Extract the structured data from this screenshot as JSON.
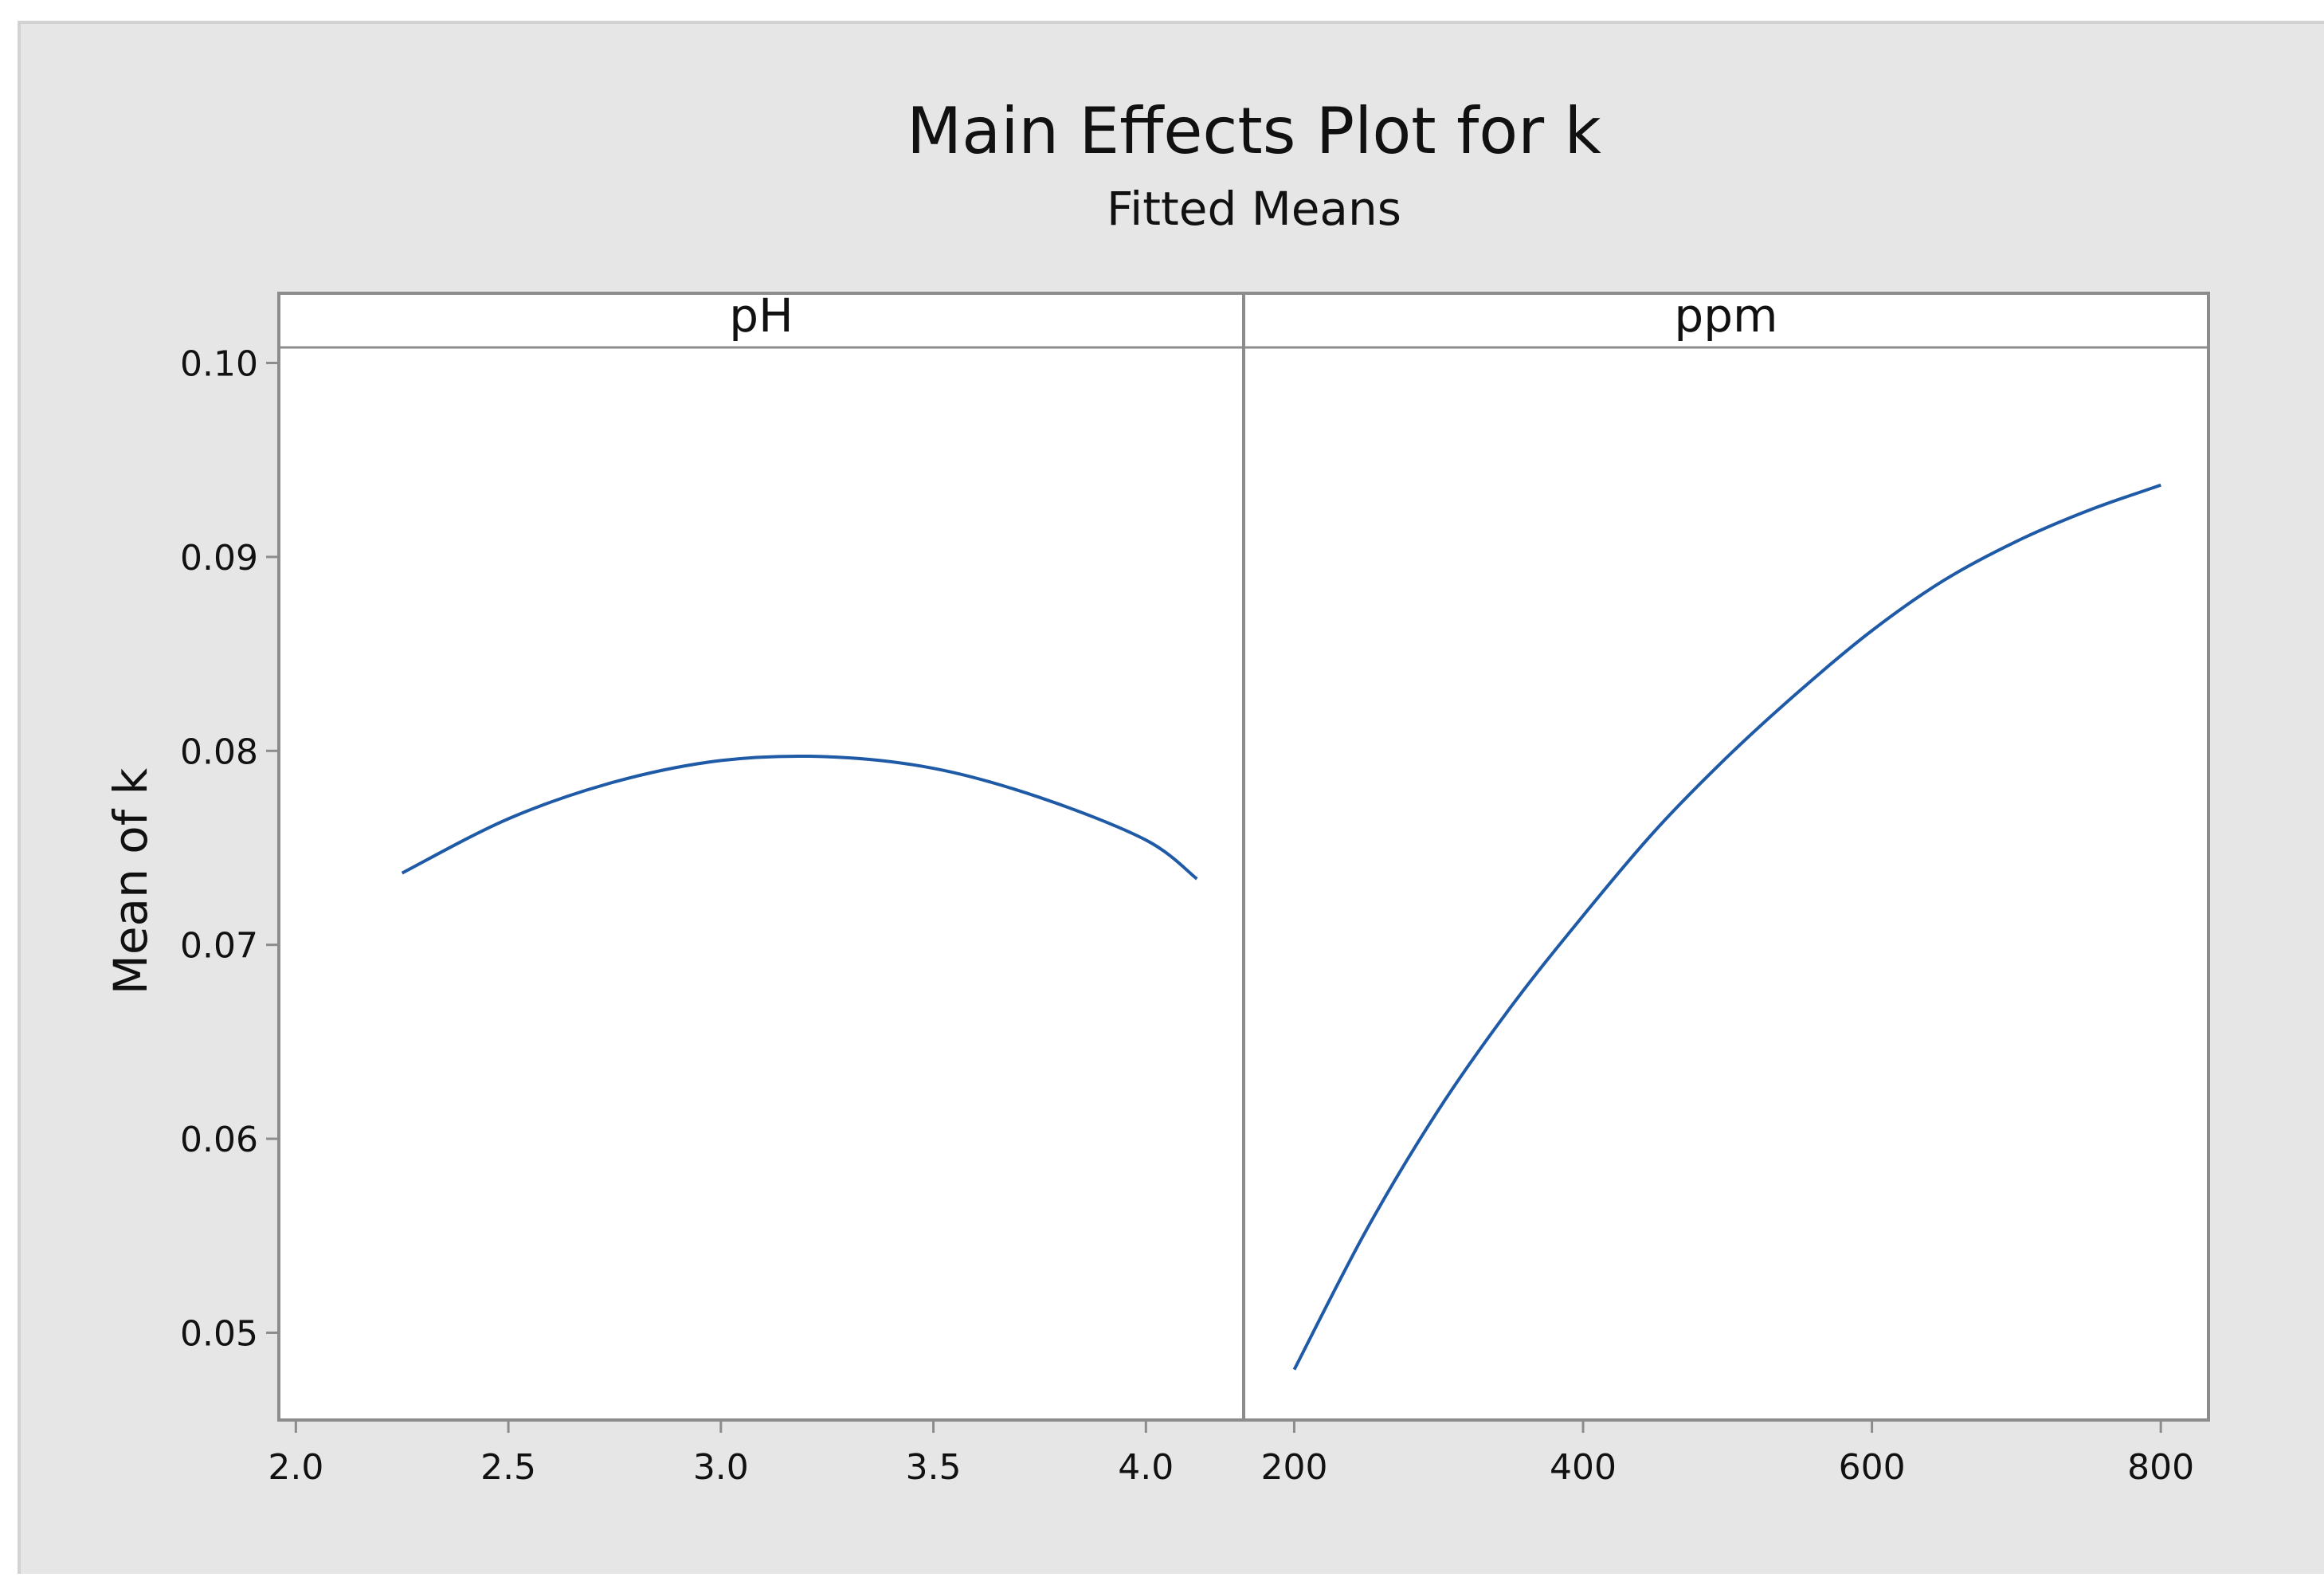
{
  "chart_data": {
    "type": "line",
    "title": "Main Effects Plot for k",
    "subtitle": "Fitted Means",
    "ylabel": "Mean of k",
    "ylim": [
      0.0455,
      0.1008
    ],
    "yticks": [
      0.05,
      0.06,
      0.07,
      0.08,
      0.09,
      0.1
    ],
    "ytick_labels": [
      "0.05",
      "0.06",
      "0.07",
      "0.08",
      "0.09",
      "0.10"
    ],
    "grid": false,
    "line_color": "#1f5aa6",
    "panels": [
      {
        "name": "pH",
        "xlim": [
          1.96,
          4.23
        ],
        "xticks": [
          2.0,
          2.5,
          3.0,
          3.5,
          4.0
        ],
        "xtick_labels": [
          "2.0",
          "2.5",
          "3.0",
          "3.5",
          "4.0"
        ],
        "x": [
          2.25,
          2.5,
          2.75,
          3.0,
          3.25,
          3.5,
          3.75,
          4.0,
          4.12
        ],
        "y": [
          0.0737,
          0.0765,
          0.0784,
          0.0795,
          0.0797,
          0.0791,
          0.0776,
          0.0754,
          0.0734
        ]
      },
      {
        "name": "ppm",
        "xlim": [
          165,
          833
        ],
        "xticks": [
          200,
          400,
          600,
          800
        ],
        "xtick_labels": [
          "200",
          "400",
          "600",
          "800"
        ],
        "x": [
          200,
          250,
          300,
          350,
          400,
          450,
          500,
          550,
          600,
          650,
          700,
          750,
          800
        ],
        "y": [
          0.0481,
          0.0553,
          0.0615,
          0.0668,
          0.0715,
          0.0759,
          0.0797,
          0.0831,
          0.0862,
          0.0888,
          0.0908,
          0.0924,
          0.0937
        ]
      }
    ]
  }
}
